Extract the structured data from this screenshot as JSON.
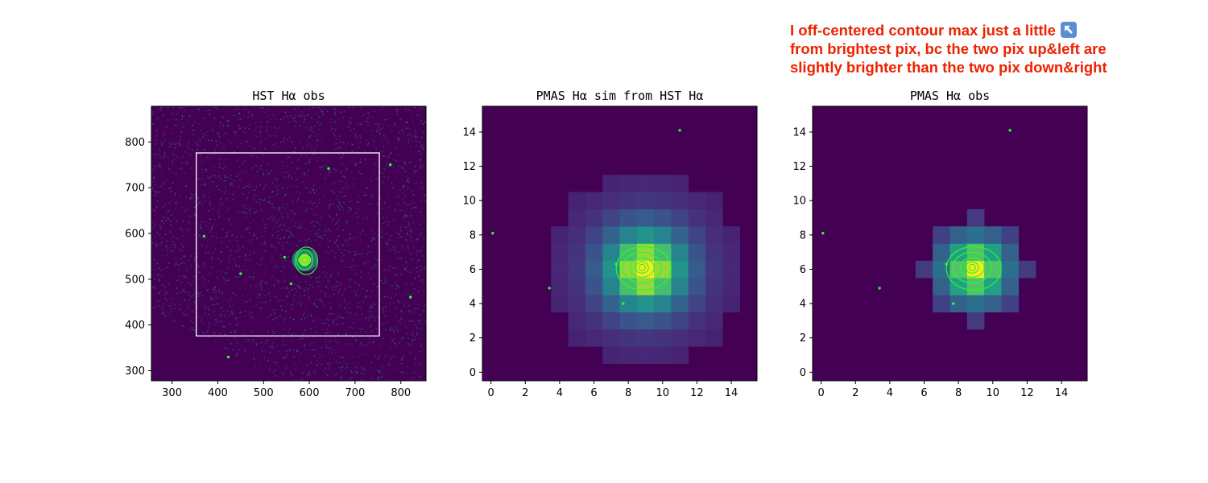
{
  "annotation": {
    "line1": "I off-centered contour max just a little",
    "line2": "from brightest pix, bc the two pix up&left are",
    "line3": "slightly brighter than the two pix down&right",
    "icon": "arrow-up-left-icon",
    "color": "#ee2200"
  },
  "colors": {
    "background": "#440154",
    "noise": "#3b528b",
    "contour": "#22ff22",
    "box": "#ffffff"
  },
  "chart_data": [
    {
      "type": "heatmap",
      "title": "HST Hα obs",
      "xlim": [
        255,
        855
      ],
      "ylim": [
        278,
        878
      ],
      "xticks": [
        300,
        400,
        500,
        600,
        700,
        800
      ],
      "yticks": [
        300,
        400,
        500,
        600,
        700,
        800
      ],
      "box": {
        "x": [
          353,
          753
        ],
        "y": [
          376,
          776
        ]
      },
      "contour_center": [
        590,
        542
      ],
      "peak_dots": [
        [
          642,
          742
        ],
        [
          777,
          750
        ],
        [
          370,
          594
        ],
        [
          450,
          512
        ],
        [
          560,
          490
        ],
        [
          546,
          548
        ],
        [
          423,
          330
        ],
        [
          821,
          461
        ]
      ],
      "grid": false
    },
    {
      "type": "heatmap",
      "title": "PMAS Hα sim from HST Hα",
      "xlim": [
        -0.5,
        15.5
      ],
      "ylim": [
        -0.5,
        15.5
      ],
      "xticks": [
        0,
        2,
        4,
        6,
        8,
        10,
        12,
        14
      ],
      "yticks": [
        0,
        2,
        4,
        6,
        8,
        10,
        12,
        14
      ],
      "peak_pixel": [
        9,
        6
      ],
      "contour_center": [
        8.8,
        6.1
      ],
      "peak_dots": [
        [
          11,
          14.1
        ],
        [
          0.1,
          8.1
        ],
        [
          3.4,
          4.9
        ],
        [
          7.3,
          6.3
        ],
        [
          7.7,
          4.0
        ]
      ],
      "grid": false
    },
    {
      "type": "heatmap",
      "title": "PMAS Hα obs",
      "xlim": [
        -0.5,
        15.5
      ],
      "ylim": [
        -0.5,
        15.5
      ],
      "xticks": [
        0,
        2,
        4,
        6,
        8,
        10,
        12,
        14
      ],
      "yticks": [
        0,
        2,
        4,
        6,
        8,
        10,
        12,
        14
      ],
      "peak_pixel": [
        9,
        6
      ],
      "contour_center": [
        8.8,
        6.1
      ],
      "peak_dots": [
        [
          11,
          14.1
        ],
        [
          0.1,
          8.1
        ],
        [
          3.4,
          4.9
        ],
        [
          7.3,
          6.3
        ],
        [
          7.7,
          4.0
        ]
      ],
      "grid": false
    }
  ]
}
